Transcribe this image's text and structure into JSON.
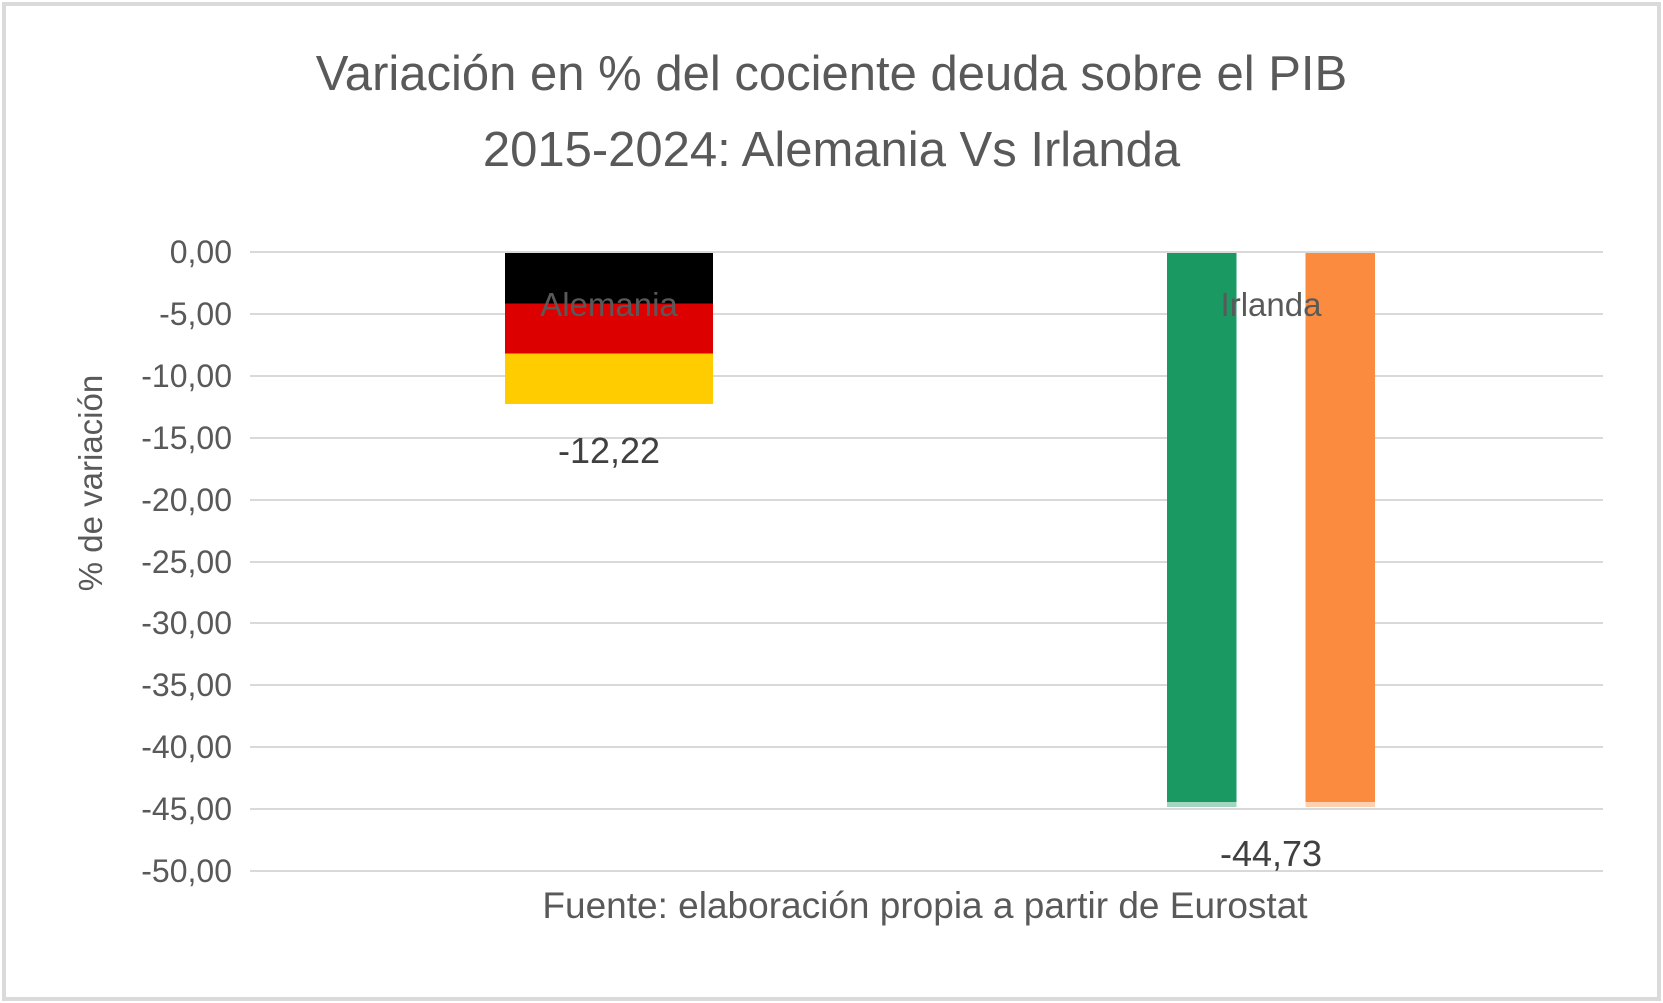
{
  "page": {
    "background": "#ffffff",
    "border_color": "#dadada"
  },
  "chart_data": {
    "type": "bar",
    "title": "Variación en % del cociente deuda sobre el PIB 2015-2024: Alemania Vs Irlanda",
    "title_lines": [
      "Variación en % del cociente deuda sobre el PIB",
      "2015-2024: Alemania Vs Irlanda"
    ],
    "xlabel": "",
    "ylabel": "% de variación",
    "source_note": "Fuente: elaboración propia a partir de Eurostat",
    "categories": [
      "Alemania",
      "Irlanda"
    ],
    "values": [
      -12.22,
      -44.73
    ],
    "value_labels": [
      "-12,22",
      "-44,73"
    ],
    "ylim": [
      -50,
      0
    ],
    "ytick_step": 5,
    "ytick_labels": [
      "0,00",
      "-5,00",
      "-10,00",
      "-15,00",
      "-20,00",
      "-25,00",
      "-30,00",
      "-35,00",
      "-40,00",
      "-45,00",
      "-50,00"
    ],
    "grid": true,
    "legend": "none",
    "bar_fills": [
      {
        "name": "germany-flag",
        "stripe_direction": "horizontal",
        "colors": [
          "#000000",
          "#dd0000",
          "#ffcc00"
        ]
      },
      {
        "name": "ireland-flag",
        "stripe_direction": "vertical",
        "colors": [
          "#1a9a62",
          "#ffffff",
          "#fb8b3e"
        ],
        "bottom_edge_tint": true
      }
    ],
    "colors": {
      "title_text": "#595959",
      "axis_text": "#595959",
      "data_label_text": "#404040",
      "gridline": "#d9d9d9"
    }
  }
}
